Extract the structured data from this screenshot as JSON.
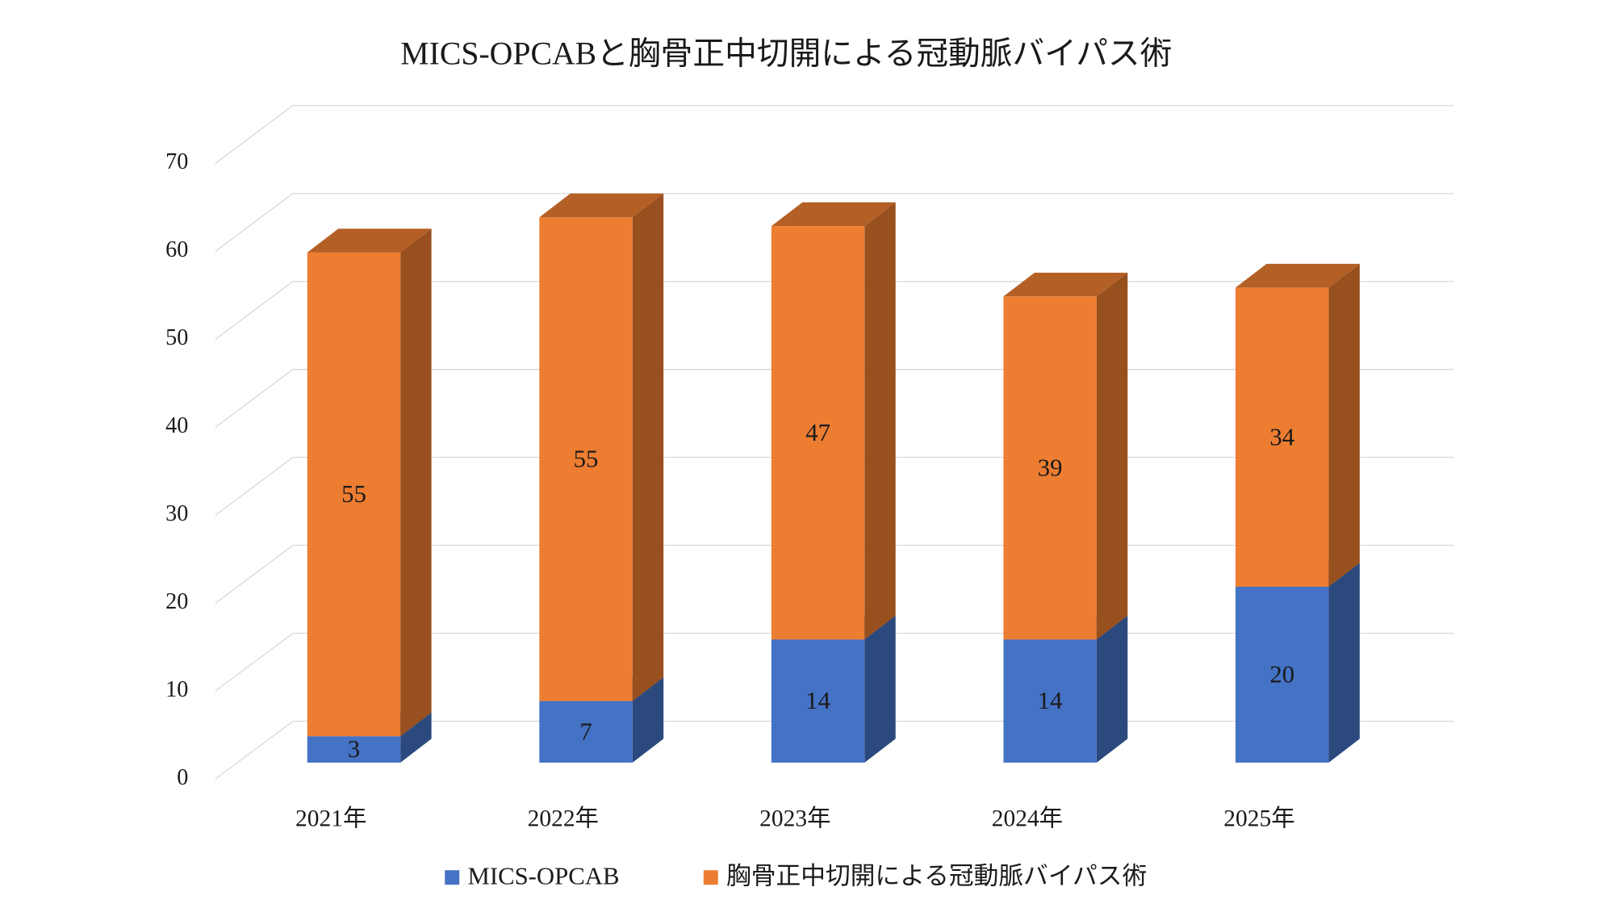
{
  "chart_data": {
    "type": "bar3d_stacked",
    "title": "MICS-OPCABと胸骨正中切開による冠動脈バイパス術",
    "categories": [
      "2021年",
      "2022年",
      "2023年",
      "2024年",
      "2025年"
    ],
    "series": [
      {
        "name": "MICS-OPCAB",
        "color": "#4472c4",
        "values": [
          3,
          7,
          14,
          14,
          20
        ]
      },
      {
        "name": "胸骨正中切開による冠動脈バイパス術",
        "color": "#ed7d31",
        "values": [
          55,
          55,
          47,
          39,
          34
        ]
      }
    ],
    "ylim": [
      0,
      70
    ],
    "yticks": [
      0,
      10,
      20,
      30,
      40,
      50,
      60,
      70
    ],
    "grid": true,
    "legend": "bottom"
  }
}
